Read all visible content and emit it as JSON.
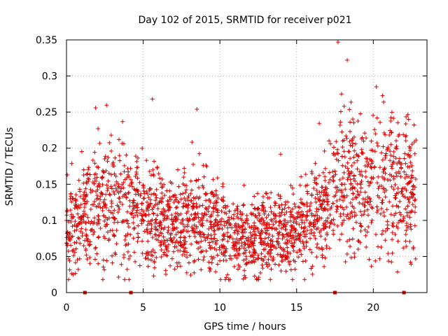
{
  "chart_data": {
    "type": "scatter",
    "title": "Day 102 of 2015, SRMTID for receiver p021",
    "xlabel": "GPS time / hours",
    "ylabel": "SRMTID / TECUs",
    "xlim": [
      0,
      23.5
    ],
    "ylim": [
      0,
      0.35
    ],
    "x_ticks": [
      0,
      5,
      10,
      15,
      20
    ],
    "x_tick_labels": [
      "0",
      "5",
      "10",
      "15",
      "20"
    ],
    "y_ticks": [
      0,
      0.05,
      0.1,
      0.15,
      0.2,
      0.25,
      0.3,
      0.35
    ],
    "y_tick_labels": [
      "0",
      "0.05",
      "0.1",
      "0.15",
      "0.2",
      "0.25",
      "0.3",
      "0.35"
    ],
    "grid": true,
    "marker": "+",
    "color": "#dd0000",
    "series": [
      {
        "name": "SRMTID",
        "x_range": [
          0,
          22.8
        ],
        "point_count": 2200,
        "hourly_median": [
          0.09,
          0.1,
          0.12,
          0.12,
          0.12,
          0.11,
          0.1,
          0.09,
          0.1,
          0.1,
          0.09,
          0.07,
          0.07,
          0.08,
          0.08,
          0.08,
          0.1,
          0.12,
          0.15,
          0.14,
          0.14,
          0.14,
          0.14,
          0.14
        ],
        "notable_peaks": [
          {
            "x": 0.05,
            "y": 0.163
          },
          {
            "x": 1.9,
            "y": 0.256
          },
          {
            "x": 5.6,
            "y": 0.268
          },
          {
            "x": 8.5,
            "y": 0.254
          },
          {
            "x": 17.7,
            "y": 0.347
          },
          {
            "x": 18.3,
            "y": 0.322
          },
          {
            "x": 20.2,
            "y": 0.285
          },
          {
            "x": 22.3,
            "y": 0.24
          }
        ]
      }
    ],
    "axis_markers": [
      1.2,
      4.2,
      17.5,
      22.0
    ]
  }
}
